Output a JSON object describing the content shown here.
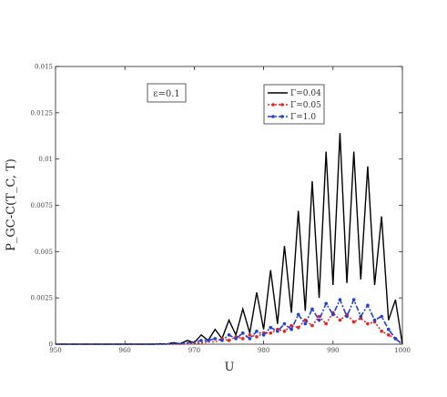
{
  "chart_data": {
    "type": "line",
    "xlabel": "U",
    "ylabel": "P_GC-C(T_C, T)",
    "xlim": [
      950,
      1000
    ],
    "ylim": [
      0,
      0.015
    ],
    "xticks": [
      950,
      960,
      970,
      980,
      990,
      1000
    ],
    "yticks": [
      0,
      0.0025,
      0.005,
      0.0075,
      0.01,
      0.0125,
      0.015
    ],
    "ytick_labels": [
      "0",
      "0.0025",
      "0.005",
      "0.0075",
      "0.01",
      "0.0125",
      "0.015"
    ],
    "annotation": "ε=0.1",
    "legend_position": "top-right",
    "x": [
      950,
      951,
      952,
      953,
      954,
      955,
      956,
      957,
      958,
      959,
      960,
      961,
      962,
      963,
      964,
      965,
      966,
      967,
      968,
      969,
      970,
      971,
      972,
      973,
      974,
      975,
      976,
      977,
      978,
      979,
      980,
      981,
      982,
      983,
      984,
      985,
      986,
      987,
      988,
      989,
      990,
      991,
      992,
      993,
      994,
      995,
      996,
      997,
      998,
      999,
      1000
    ],
    "series": [
      {
        "name": "Γ=0.04",
        "color": "#000000",
        "style": "solid",
        "values": [
          0,
          0,
          0,
          0,
          0,
          0,
          0,
          0,
          0,
          0,
          0,
          0,
          0,
          0,
          0,
          2e-05,
          1e-05,
          8e-05,
          3e-05,
          0.0002,
          8e-05,
          0.0005,
          0.0002,
          0.0008,
          0.0003,
          0.0013,
          0.0005,
          0.0019,
          0.0006,
          0.0028,
          0.0008,
          0.004,
          0.0011,
          0.0053,
          0.0017,
          0.0072,
          0.0018,
          0.0088,
          0.0025,
          0.0104,
          0.0032,
          0.0114,
          0.0033,
          0.0104,
          0.0035,
          0.0096,
          0.0032,
          0.0069,
          0.0013,
          0.0024,
          0
        ]
      },
      {
        "name": "Γ=0.05",
        "color": "#e8231e",
        "style": "dotted",
        "values": [
          0,
          0,
          0,
          0,
          0,
          0,
          0,
          0,
          0,
          0,
          0,
          0,
          0,
          0,
          0,
          0,
          0,
          0,
          0,
          2e-05,
          5e-05,
          7e-05,
          0.00013,
          0.00012,
          0.0003,
          0.0002,
          0.0004,
          0.0003,
          0.0005,
          0.0004,
          0.0006,
          0.0006,
          0.0008,
          0.0007,
          0.001,
          0.0009,
          0.0013,
          0.001,
          0.0015,
          0.0011,
          0.0017,
          0.0013,
          0.0016,
          0.0012,
          0.0014,
          0.0011,
          0.0012,
          0.0007,
          0.0005,
          0.0003,
          0
        ]
      },
      {
        "name": "Γ=1.0",
        "color": "#1f3fd8",
        "style": "dashdot",
        "values": [
          0,
          0,
          0,
          0,
          0,
          0,
          0,
          0,
          0,
          0,
          0,
          0,
          0,
          0,
          0,
          0,
          0,
          4e-05,
          3e-05,
          8e-05,
          0.0001,
          0.0002,
          0.0002,
          0.0003,
          0.0002,
          0.0005,
          0.0003,
          0.0006,
          0.0003,
          0.0007,
          0.0005,
          0.0009,
          0.0007,
          0.0011,
          0.0008,
          0.0016,
          0.0011,
          0.0019,
          0.0013,
          0.0022,
          0.0016,
          0.0024,
          0.0015,
          0.0024,
          0.0015,
          0.0021,
          0.0013,
          0.0015,
          0.0008,
          0.0003,
          0
        ]
      }
    ]
  }
}
